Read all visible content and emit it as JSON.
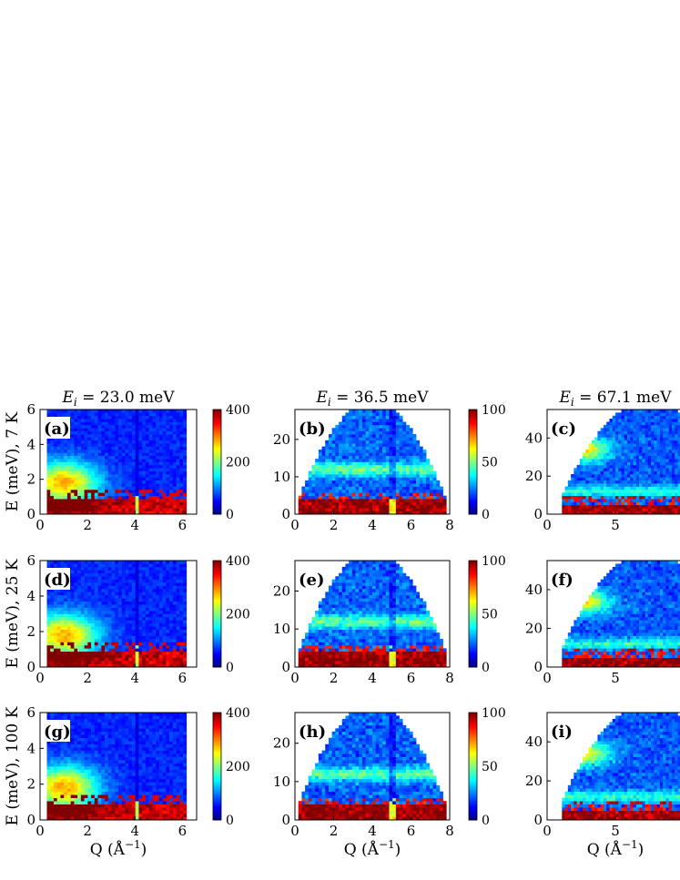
{
  "figure": {
    "columns": [
      {
        "title_prefix": "E",
        "title_sub": "i",
        "title_value": " = 23.0 meV",
        "xticks": [
          "0",
          "2",
          "4",
          "6"
        ],
        "xlim": [
          0,
          6.6
        ],
        "yticks": [
          "0",
          "2",
          "4",
          "6"
        ],
        "ylim": [
          0,
          6
        ],
        "cbar_ticks": [
          "0",
          "200",
          "400"
        ],
        "cbar_lim": [
          0,
          400
        ]
      },
      {
        "title_prefix": "E",
        "title_sub": "i",
        "title_value": " = 36.5 meV",
        "xticks": [
          "0",
          "2",
          "4",
          "6",
          "8"
        ],
        "xlim": [
          0,
          8
        ],
        "yticks": [
          "0",
          "10",
          "20"
        ],
        "ylim": [
          0,
          28
        ],
        "cbar_ticks": [
          "0",
          "50",
          "100"
        ],
        "cbar_lim": [
          0,
          100
        ]
      },
      {
        "title_prefix": "E",
        "title_sub": "i",
        "title_value": " = 67.1 meV",
        "xticks": [
          "0",
          "5"
        ],
        "xlim": [
          0,
          10
        ],
        "yticks": [
          "0",
          "20",
          "40"
        ],
        "ylim": [
          0,
          55
        ],
        "cbar_ticks": [],
        "cbar_lim": null
      }
    ],
    "rows": [
      {
        "ylabel": "E (meV), 7 K",
        "panel_labels": [
          "(a)",
          "(b)",
          "(c)"
        ]
      },
      {
        "ylabel": "E (meV), 25 K",
        "panel_labels": [
          "(d)",
          "(e)",
          "(f)"
        ]
      },
      {
        "ylabel": "E (meV), 100 K",
        "panel_labels": [
          "(g)",
          "(h)",
          "(i)"
        ]
      }
    ],
    "xlabel": "Q (Å",
    "xlabel_sup": "−1",
    "xlabel_end": ")",
    "colormap": "jet",
    "background_color": "#ffffff"
  },
  "chart_data": [
    {
      "type": "heatmap",
      "panel": "(a)",
      "title": "Ei = 23.0 meV",
      "xlabel": "",
      "ylabel": "E (meV), 7 K",
      "xlim": [
        0,
        6.6
      ],
      "ylim": [
        0,
        6
      ],
      "clim": [
        0,
        400
      ]
    },
    {
      "type": "heatmap",
      "panel": "(b)",
      "title": "Ei = 36.5 meV",
      "xlabel": "",
      "ylabel": "",
      "xlim": [
        0,
        8
      ],
      "ylim": [
        0,
        28
      ],
      "clim": [
        0,
        100
      ]
    },
    {
      "type": "heatmap",
      "panel": "(c)",
      "title": "Ei = 67.1 meV",
      "xlabel": "",
      "ylabel": "",
      "xlim": [
        0,
        10
      ],
      "ylim": [
        0,
        55
      ],
      "clim": null
    },
    {
      "type": "heatmap",
      "panel": "(d)",
      "title": "",
      "xlabel": "",
      "ylabel": "E (meV), 25 K",
      "xlim": [
        0,
        6.6
      ],
      "ylim": [
        0,
        6
      ],
      "clim": [
        0,
        400
      ]
    },
    {
      "type": "heatmap",
      "panel": "(e)",
      "title": "",
      "xlabel": "",
      "ylabel": "",
      "xlim": [
        0,
        8
      ],
      "ylim": [
        0,
        28
      ],
      "clim": [
        0,
        100
      ]
    },
    {
      "type": "heatmap",
      "panel": "(f)",
      "title": "",
      "xlabel": "",
      "ylabel": "",
      "xlim": [
        0,
        10
      ],
      "ylim": [
        0,
        55
      ],
      "clim": null
    },
    {
      "type": "heatmap",
      "panel": "(g)",
      "title": "",
      "xlabel": "Q (Å−1)",
      "ylabel": "E (meV), 100 K",
      "xlim": [
        0,
        6.6
      ],
      "ylim": [
        0,
        6
      ],
      "clim": [
        0,
        400
      ]
    },
    {
      "type": "heatmap",
      "panel": "(h)",
      "title": "",
      "xlabel": "Q (Å−1)",
      "ylabel": "",
      "xlim": [
        0,
        8
      ],
      "ylim": [
        0,
        28
      ],
      "clim": [
        0,
        100
      ]
    },
    {
      "type": "heatmap",
      "panel": "(i)",
      "title": "",
      "xlabel": "Q (Å−1)",
      "ylabel": "",
      "xlim": [
        0,
        10
      ],
      "ylim": [
        0,
        55
      ],
      "clim": null
    }
  ]
}
